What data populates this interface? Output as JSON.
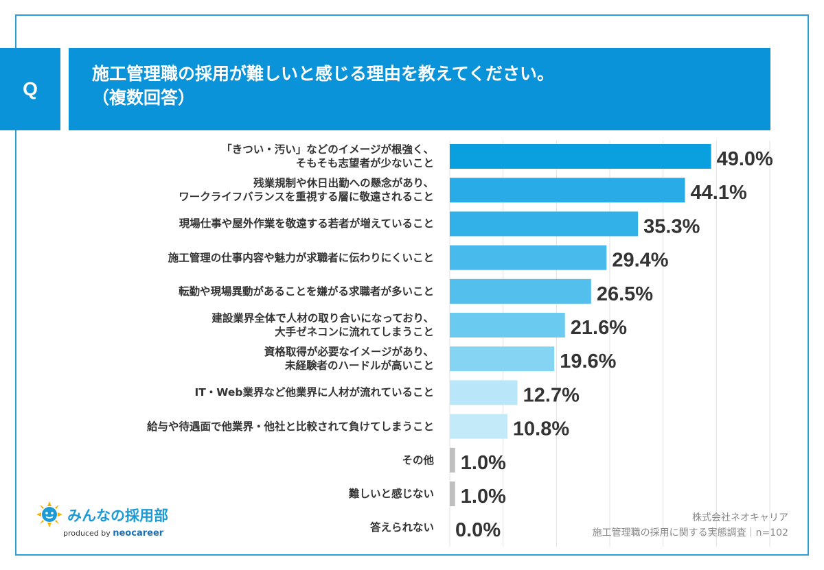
{
  "header": {
    "q_label": "Q",
    "title_line1": "施工管理職の採用が難しいと感じる理由を教えてください。",
    "title_line2": "（複数回答）"
  },
  "chart_data": {
    "type": "bar",
    "orientation": "horizontal",
    "title": "施工管理職の採用が難しいと感じる理由を教えてください。（複数回答）",
    "xlim": [
      0,
      60
    ],
    "grid": true,
    "categories": [
      [
        "「きつい・汚い」などのイメージが根強く、",
        "そもそも志望者が少ないこと"
      ],
      [
        "残業規制や休日出勤への懸念があり、",
        "ワークライフバランスを重視する層に敬遠されること"
      ],
      [
        "現場仕事や屋外作業を敬遠する若者が増えていること"
      ],
      [
        "施工管理の仕事内容や魅力が求職者に伝わりにくいこと"
      ],
      [
        "転勤や現場異動があることを嫌がる求職者が多いこと"
      ],
      [
        "建設業界全体で人材の取り合いになっており、",
        "大手ゼネコンに流れてしまうこと"
      ],
      [
        "資格取得が必要なイメージがあり、",
        "未経験者のハードルが高いこと"
      ],
      [
        "IT・Web業界など他業界に人材が流れていること"
      ],
      [
        "給与や待遇面で他業界・他社と比較されて負けてしまうこと"
      ],
      [
        "その他"
      ],
      [
        "難しいと感じない"
      ],
      [
        "答えられない"
      ]
    ],
    "values": [
      49.0,
      44.1,
      35.3,
      29.4,
      26.5,
      21.6,
      19.6,
      12.7,
      10.8,
      1.0,
      1.0,
      0.0
    ],
    "value_labels": [
      "49.0%",
      "44.1%",
      "35.3%",
      "29.4%",
      "26.5%",
      "21.6%",
      "19.6%",
      "12.7%",
      "10.8%",
      "1.0%",
      "1.0%",
      "0.0%"
    ],
    "colors": [
      "#0aa0e0",
      "#28abe6",
      "#32b1e8",
      "#48bbec",
      "#52bfec",
      "#6bcaf0",
      "#85d4f3",
      "#b9e6f8",
      "#c3eaf9",
      "#bfbfbf",
      "#bfbfbf",
      "#bfbfbf"
    ]
  },
  "footer": {
    "logo_name": "みんなの採用部",
    "logo_produced_by": "produced by",
    "logo_brand": "neocareer",
    "logo_icon": "sun-face-icon",
    "source_line1": "株式会社ネオキャリア",
    "source_line2": "施工管理職の採用に関する実態調査｜n=102"
  }
}
